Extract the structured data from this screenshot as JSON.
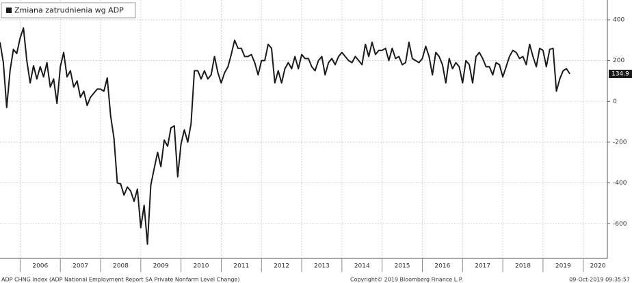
{
  "chart_data": {
    "type": "line",
    "legend_label": "Zmiana zatrudnienia wg ADP",
    "source": "ADP CHNG Index (ADP National Employment Report SA Private Nonfarm Level Change)",
    "copyright": "Copyright© 2019 Bloomberg Finance L.P.",
    "timestamp": "09-Oct-2019 09:35:57",
    "x": [
      2005.5,
      2005.583,
      2005.667,
      2005.75,
      2005.833,
      2005.917,
      2006,
      2006.083,
      2006.167,
      2006.25,
      2006.333,
      2006.417,
      2006.5,
      2006.583,
      2006.667,
      2006.75,
      2006.833,
      2006.917,
      2007,
      2007.083,
      2007.167,
      2007.25,
      2007.333,
      2007.417,
      2007.5,
      2007.583,
      2007.667,
      2007.75,
      2007.833,
      2007.917,
      2008,
      2008.083,
      2008.167,
      2008.25,
      2008.333,
      2008.417,
      2008.5,
      2008.583,
      2008.667,
      2008.75,
      2008.833,
      2008.917,
      2009,
      2009.083,
      2009.167,
      2009.25,
      2009.333,
      2009.417,
      2009.5,
      2009.583,
      2009.667,
      2009.75,
      2009.833,
      2009.917,
      2010,
      2010.083,
      2010.167,
      2010.25,
      2010.333,
      2010.417,
      2010.5,
      2010.583,
      2010.667,
      2010.75,
      2010.833,
      2010.917,
      2011,
      2011.083,
      2011.167,
      2011.25,
      2011.333,
      2011.417,
      2011.5,
      2011.583,
      2011.667,
      2011.75,
      2011.833,
      2011.917,
      2012,
      2012.083,
      2012.167,
      2012.25,
      2012.333,
      2012.417,
      2012.5,
      2012.583,
      2012.667,
      2012.75,
      2012.833,
      2012.917,
      2013,
      2013.083,
      2013.167,
      2013.25,
      2013.333,
      2013.417,
      2013.5,
      2013.583,
      2013.667,
      2013.75,
      2013.833,
      2013.917,
      2014,
      2014.083,
      2014.167,
      2014.25,
      2014.333,
      2014.417,
      2014.5,
      2014.583,
      2014.667,
      2014.75,
      2014.833,
      2014.917,
      2015,
      2015.083,
      2015.167,
      2015.25,
      2015.333,
      2015.417,
      2015.5,
      2015.583,
      2015.667,
      2015.75,
      2015.833,
      2015.917,
      2016,
      2016.083,
      2016.167,
      2016.25,
      2016.333,
      2016.417,
      2016.5,
      2016.583,
      2016.667,
      2016.75,
      2016.833,
      2016.917,
      2017,
      2017.083,
      2017.167,
      2017.25,
      2017.333,
      2017.417,
      2017.5,
      2017.583,
      2017.667,
      2017.75,
      2017.833,
      2017.917,
      2018,
      2018.083,
      2018.167,
      2018.25,
      2018.333,
      2018.417,
      2018.5,
      2018.583,
      2018.667,
      2018.75,
      2018.833,
      2018.917,
      2019,
      2019.083,
      2019.167,
      2019.25,
      2019.333,
      2019.417,
      2019.5,
      2019.583,
      2019.667
    ],
    "series": [
      {
        "name": "Zmiana zatrudnienia wg ADP",
        "color": "#1a1a1a",
        "values": [
          290,
          190,
          -30,
          150,
          255,
          235,
          310,
          360,
          200,
          90,
          175,
          110,
          170,
          120,
          190,
          70,
          110,
          -10,
          170,
          240,
          120,
          150,
          70,
          100,
          20,
          50,
          -20,
          20,
          40,
          60,
          60,
          50,
          115,
          -70,
          -180,
          -400,
          -405,
          -460,
          -420,
          -440,
          -490,
          -430,
          -620,
          -510,
          -700,
          -410,
          -330,
          -250,
          -320,
          -190,
          -220,
          -130,
          -120,
          -370,
          -210,
          -140,
          -200,
          -110,
          150,
          150,
          110,
          150,
          110,
          130,
          220,
          140,
          90,
          140,
          170,
          230,
          300,
          260,
          260,
          220,
          220,
          230,
          190,
          130,
          200,
          200,
          280,
          260,
          90,
          150,
          90,
          160,
          190,
          160,
          220,
          160,
          230,
          210,
          210,
          170,
          150,
          200,
          220,
          130,
          190,
          210,
          180,
          220,
          240,
          220,
          200,
          190,
          220,
          200,
          180,
          280,
          220,
          290,
          230,
          250,
          250,
          260,
          200,
          260,
          210,
          220,
          180,
          190,
          290,
          210,
          200,
          190,
          210,
          270,
          220,
          130,
          240,
          220,
          180,
          90,
          210,
          160,
          190,
          170,
          90,
          200,
          180,
          90,
          220,
          240,
          210,
          170,
          170,
          130,
          190,
          180,
          120,
          170,
          220,
          250,
          240,
          210,
          220,
          180,
          280,
          220,
          170,
          260,
          250,
          170,
          255,
          260,
          50,
          110,
          150,
          160,
          134.9
        ]
      }
    ],
    "xlim": [
      2005.5,
      2020.6
    ],
    "xticks": [
      2006,
      2007,
      2008,
      2009,
      2010,
      2011,
      2012,
      2013,
      2014,
      2015,
      2016,
      2017,
      2018,
      2019,
      2020
    ],
    "ylim": [
      -770,
      497
    ],
    "yticks": [
      400,
      200,
      0,
      -200,
      -400,
      -600
    ],
    "grid": true
  }
}
